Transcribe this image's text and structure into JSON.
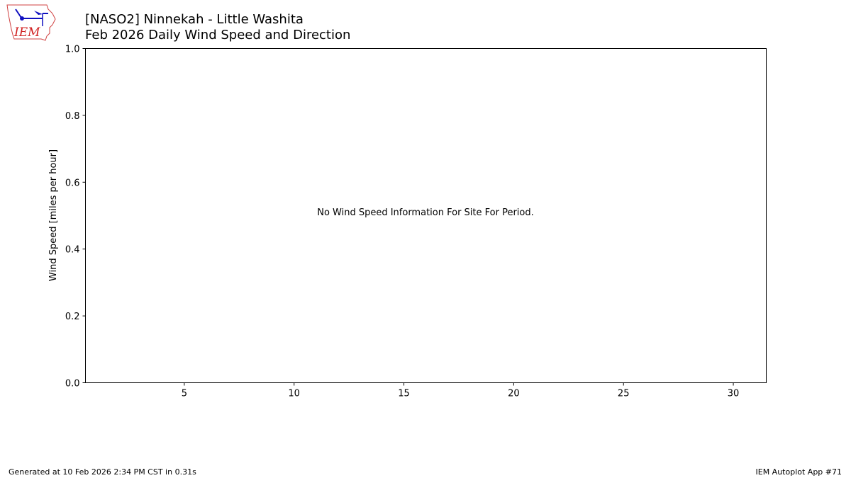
{
  "header": {
    "title_line1": "[NASO2] Ninnekah - Little Washita",
    "title_line2": "Feb 2026 Daily Wind Speed and Direction",
    "logo_text": "IEM"
  },
  "footer": {
    "generated": "Generated at 10 Feb 2026 2:34 PM CST in 0.31s",
    "app": "IEM Autoplot App #71"
  },
  "chart_data": {
    "type": "bar",
    "title": "[NASO2] Ninnekah - Little Washita\nFeb 2026 Daily Wind Speed and Direction",
    "xlabel": "",
    "ylabel": "Wind Speed [miles per hour]",
    "xlim": [
      0.5,
      31.5
    ],
    "ylim": [
      0,
      1
    ],
    "xticks": [
      5,
      10,
      15,
      20,
      25,
      30
    ],
    "yticks": [
      "0.0",
      "0.2",
      "0.4",
      "0.6",
      "0.8",
      "1.0"
    ],
    "grid": false,
    "series": [],
    "annotation": "No Wind Speed Information For Site For Period."
  }
}
